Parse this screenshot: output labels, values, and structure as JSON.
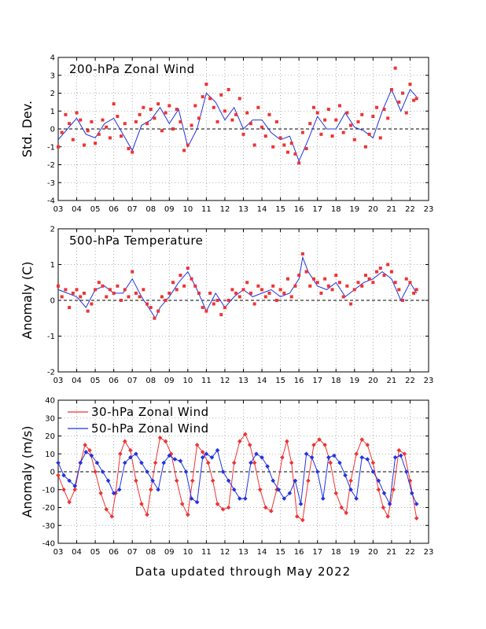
{
  "footer": "Data updated through May 2022",
  "colors": {
    "obs": "#ee3333",
    "smooth": "#2233dd",
    "t30": "#ee3333",
    "t50": "#2233dd",
    "grid": "#999999"
  },
  "chart_data": [
    {
      "type": "scatter",
      "title": "200-hPa Zonal Wind",
      "ylabel": "Std. Dev.",
      "xlabel": "",
      "xticks": [
        "03",
        "04",
        "05",
        "06",
        "07",
        "08",
        "09",
        "10",
        "11",
        "12",
        "13",
        "14",
        "15",
        "16",
        "17",
        "18",
        "19",
        "20",
        "21",
        "22",
        "23"
      ],
      "xlim": [
        2003,
        2023
      ],
      "ylim": [
        -4,
        4
      ],
      "yticks": [
        -4,
        -3,
        -2,
        -1,
        0,
        1,
        2,
        3,
        4
      ],
      "grid": true,
      "series": [
        {
          "role": "smoothed",
          "style": "line",
          "x": [
            2003.0,
            2003.5,
            2004.0,
            2004.5,
            2005.0,
            2005.5,
            2006.0,
            2006.5,
            2007.0,
            2007.5,
            2008.0,
            2008.5,
            2009.0,
            2009.5,
            2010.0,
            2010.5,
            2011.0,
            2011.5,
            2012.0,
            2012.5,
            2013.0,
            2013.5,
            2014.0,
            2014.5,
            2015.0,
            2015.5,
            2016.0,
            2016.5,
            2017.0,
            2017.5,
            2018.0,
            2018.5,
            2019.0,
            2019.5,
            2020.0,
            2020.5,
            2021.0,
            2021.5,
            2022.0,
            2022.35
          ],
          "y": [
            -0.6,
            0.0,
            0.6,
            -0.3,
            -0.5,
            0.3,
            0.6,
            -0.3,
            -1.2,
            0.2,
            0.5,
            1.2,
            0.3,
            1.1,
            -1.0,
            0.0,
            2.0,
            1.5,
            0.5,
            1.2,
            0.0,
            0.5,
            0.5,
            -0.2,
            -0.6,
            -0.4,
            -1.8,
            -0.6,
            0.7,
            0.0,
            0.0,
            0.9,
            0.1,
            -0.1,
            -0.5,
            1.0,
            2.2,
            1.0,
            2.2,
            1.8
          ]
        },
        {
          "role": "observed",
          "style": "markers",
          "x": [
            2003.0,
            2003.2,
            2003.4,
            2003.6,
            2003.8,
            2004.0,
            2004.2,
            2004.4,
            2004.6,
            2004.8,
            2005.0,
            2005.2,
            2005.4,
            2005.6,
            2005.8,
            2006.0,
            2006.2,
            2006.4,
            2006.6,
            2006.8,
            2007.0,
            2007.2,
            2007.4,
            2007.6,
            2007.8,
            2008.0,
            2008.2,
            2008.4,
            2008.6,
            2008.8,
            2009.0,
            2009.2,
            2009.4,
            2009.6,
            2009.8,
            2010.0,
            2010.2,
            2010.4,
            2010.6,
            2010.8,
            2011.0,
            2011.2,
            2011.4,
            2011.6,
            2011.8,
            2012.0,
            2012.2,
            2012.4,
            2012.6,
            2012.8,
            2013.0,
            2013.2,
            2013.4,
            2013.6,
            2013.8,
            2014.0,
            2014.2,
            2014.4,
            2014.6,
            2014.8,
            2015.0,
            2015.2,
            2015.4,
            2015.6,
            2015.8,
            2016.0,
            2016.2,
            2016.4,
            2016.6,
            2016.8,
            2017.0,
            2017.2,
            2017.4,
            2017.6,
            2017.8,
            2018.0,
            2018.2,
            2018.4,
            2018.6,
            2018.8,
            2019.0,
            2019.2,
            2019.4,
            2019.6,
            2019.8,
            2020.0,
            2020.2,
            2020.4,
            2020.6,
            2020.8,
            2021.0,
            2021.2,
            2021.4,
            2021.6,
            2021.8,
            2022.0,
            2022.2,
            2022.35
          ],
          "y": [
            -1.0,
            -0.2,
            0.8,
            0.3,
            -0.6,
            0.9,
            0.5,
            -0.9,
            -0.1,
            0.4,
            -0.8,
            -0.3,
            0.5,
            0.1,
            -0.5,
            1.4,
            0.7,
            -0.4,
            0.3,
            -1.1,
            -1.3,
            0.4,
            0.8,
            1.2,
            0.3,
            1.1,
            0.6,
            1.4,
            -0.1,
            0.9,
            1.3,
            0.0,
            1.1,
            0.4,
            -1.2,
            -0.9,
            0.2,
            1.3,
            0.6,
            1.8,
            2.5,
            1.7,
            1.2,
            0.4,
            1.9,
            1.0,
            2.2,
            0.5,
            0.8,
            1.7,
            -0.3,
            0.9,
            0.3,
            -0.9,
            1.2,
            0.1,
            -0.4,
            0.8,
            -1.0,
            0.4,
            -0.5,
            -0.9,
            -1.3,
            -0.8,
            -1.4,
            -1.9,
            -0.2,
            -1.1,
            0.3,
            1.2,
            0.9,
            -0.3,
            0.5,
            1.1,
            -0.4,
            0.5,
            1.3,
            -0.2,
            0.9,
            0.2,
            -0.6,
            0.4,
            0.8,
            -1.0,
            -0.3,
            0.7,
            1.2,
            -0.5,
            1.1,
            0.6,
            2.2,
            3.4,
            1.5,
            2.0,
            0.9,
            2.5,
            1.6,
            1.7
          ]
        }
      ]
    },
    {
      "type": "scatter",
      "title": "500-hPa Temperature",
      "ylabel": "Anomaly (C)",
      "xlabel": "",
      "xticks": [
        "03",
        "04",
        "05",
        "06",
        "07",
        "08",
        "09",
        "10",
        "11",
        "12",
        "13",
        "14",
        "15",
        "16",
        "17",
        "18",
        "19",
        "20",
        "21",
        "22",
        "23"
      ],
      "xlim": [
        2003,
        2023
      ],
      "ylim": [
        -2,
        2
      ],
      "yticks": [
        -2,
        -1,
        0,
        1,
        2
      ],
      "grid": true,
      "series": [
        {
          "role": "smoothed",
          "style": "line",
          "x": [
            2003.0,
            2003.5,
            2004.0,
            2004.5,
            2005.0,
            2005.5,
            2006.0,
            2006.5,
            2007.0,
            2007.5,
            2008.0,
            2008.25,
            2008.5,
            2009.0,
            2009.5,
            2010.0,
            2010.5,
            2011.0,
            2011.5,
            2012.0,
            2012.5,
            2013.0,
            2013.5,
            2014.0,
            2014.5,
            2015.0,
            2015.5,
            2016.0,
            2016.2,
            2016.5,
            2017.0,
            2017.5,
            2018.0,
            2018.5,
            2019.0,
            2019.5,
            2020.0,
            2020.5,
            2021.0,
            2021.5,
            2022.0,
            2022.35
          ],
          "y": [
            0.3,
            0.2,
            0.1,
            -0.2,
            0.3,
            0.4,
            0.2,
            0.2,
            0.6,
            0.1,
            -0.3,
            -0.5,
            -0.2,
            0.1,
            0.5,
            0.8,
            0.3,
            -0.3,
            0.2,
            -0.2,
            0.1,
            0.3,
            0.1,
            0.2,
            0.3,
            0.1,
            0.2,
            0.6,
            1.2,
            0.8,
            0.4,
            0.3,
            0.5,
            0.1,
            0.3,
            0.5,
            0.6,
            0.8,
            0.6,
            0.0,
            0.5,
            0.2
          ]
        },
        {
          "role": "observed",
          "style": "markers",
          "x": [
            2003.0,
            2003.2,
            2003.4,
            2003.6,
            2003.8,
            2004.0,
            2004.2,
            2004.4,
            2004.6,
            2004.8,
            2005.0,
            2005.2,
            2005.4,
            2005.6,
            2005.8,
            2006.0,
            2006.2,
            2006.4,
            2006.6,
            2006.8,
            2007.0,
            2007.2,
            2007.4,
            2007.6,
            2007.8,
            2008.0,
            2008.2,
            2008.4,
            2008.6,
            2008.8,
            2009.0,
            2009.2,
            2009.4,
            2009.6,
            2009.8,
            2010.0,
            2010.2,
            2010.4,
            2010.6,
            2010.8,
            2011.0,
            2011.2,
            2011.4,
            2011.6,
            2011.8,
            2012.0,
            2012.2,
            2012.4,
            2012.6,
            2012.8,
            2013.0,
            2013.2,
            2013.4,
            2013.6,
            2013.8,
            2014.0,
            2014.2,
            2014.4,
            2014.6,
            2014.8,
            2015.0,
            2015.2,
            2015.4,
            2015.6,
            2015.8,
            2016.0,
            2016.2,
            2016.4,
            2016.6,
            2016.8,
            2017.0,
            2017.2,
            2017.4,
            2017.6,
            2017.8,
            2018.0,
            2018.2,
            2018.4,
            2018.6,
            2018.8,
            2019.0,
            2019.2,
            2019.4,
            2019.6,
            2019.8,
            2020.0,
            2020.2,
            2020.4,
            2020.6,
            2020.8,
            2021.0,
            2021.2,
            2021.4,
            2021.6,
            2021.8,
            2022.0,
            2022.2,
            2022.35
          ],
          "y": [
            0.4,
            0.1,
            0.3,
            -0.2,
            0.2,
            0.3,
            0.1,
            0.2,
            -0.3,
            -0.1,
            0.3,
            0.5,
            0.4,
            0.1,
            0.3,
            0.2,
            0.4,
            0.0,
            0.3,
            0.1,
            0.8,
            0.2,
            0.1,
            0.3,
            -0.1,
            -0.2,
            -0.5,
            -0.3,
            0.1,
            0.0,
            0.2,
            0.5,
            0.3,
            0.7,
            0.4,
            0.9,
            0.6,
            0.4,
            0.2,
            -0.2,
            -0.3,
            0.2,
            -0.1,
            0.0,
            -0.4,
            -0.2,
            0.0,
            0.3,
            0.2,
            0.1,
            0.3,
            0.5,
            0.2,
            -0.1,
            0.4,
            0.3,
            0.1,
            0.2,
            0.4,
            0.0,
            0.3,
            0.2,
            0.6,
            0.1,
            0.4,
            0.7,
            1.3,
            0.8,
            0.4,
            0.6,
            0.5,
            0.2,
            0.6,
            0.4,
            0.3,
            0.7,
            0.5,
            0.1,
            0.4,
            -0.1,
            0.3,
            0.5,
            0.4,
            0.7,
            0.6,
            0.5,
            0.8,
            0.9,
            0.7,
            1.0,
            0.8,
            0.5,
            0.3,
            0.0,
            0.6,
            0.5,
            0.2,
            0.3
          ]
        }
      ]
    },
    {
      "type": "line",
      "title": "",
      "ylabel": "Anomaly (m/s)",
      "xlabel": "",
      "xticks": [
        "03",
        "04",
        "05",
        "06",
        "07",
        "08",
        "09",
        "10",
        "11",
        "12",
        "13",
        "14",
        "15",
        "16",
        "17",
        "18",
        "19",
        "20",
        "21",
        "22",
        "23"
      ],
      "xlim": [
        2003,
        2023
      ],
      "ylim": [
        -40,
        40
      ],
      "yticks": [
        -40,
        -30,
        -20,
        -10,
        0,
        10,
        20,
        30,
        40
      ],
      "grid": true,
      "legend": "top-left",
      "series": [
        {
          "name": "30-hPa Zonal Wind",
          "x": [
            2003.0,
            2003.3,
            2003.6,
            2003.9,
            2004.2,
            2004.45,
            2004.7,
            2005.0,
            2005.3,
            2005.6,
            2005.9,
            2006.1,
            2006.35,
            2006.6,
            2006.9,
            2007.2,
            2007.5,
            2007.8,
            2008.0,
            2008.25,
            2008.5,
            2008.8,
            2009.1,
            2009.4,
            2009.7,
            2010.0,
            2010.25,
            2010.5,
            2010.8,
            2011.1,
            2011.35,
            2011.6,
            2011.9,
            2012.2,
            2012.5,
            2012.8,
            2013.1,
            2013.35,
            2013.6,
            2013.9,
            2014.2,
            2014.5,
            2014.8,
            2015.1,
            2015.35,
            2015.6,
            2015.9,
            2016.2,
            2016.5,
            2016.8,
            2017.1,
            2017.4,
            2017.7,
            2018.0,
            2018.3,
            2018.55,
            2018.8,
            2019.1,
            2019.4,
            2019.7,
            2020.0,
            2020.3,
            2020.55,
            2020.8,
            2021.1,
            2021.4,
            2021.7,
            2022.0,
            2022.35
          ],
          "y": [
            -2,
            -10,
            -17,
            -10,
            5,
            15,
            12,
            0,
            -12,
            -21,
            -25,
            -12,
            10,
            17,
            12,
            -5,
            -18,
            -24,
            -10,
            5,
            19,
            17,
            10,
            -5,
            -18,
            -24,
            -5,
            15,
            11,
            5,
            -5,
            -18,
            -21,
            -20,
            5,
            17,
            21,
            15,
            5,
            -10,
            -20,
            -22,
            -10,
            8,
            17,
            5,
            -25,
            -27,
            -5,
            15,
            18,
            15,
            5,
            -12,
            -20,
            -23,
            -5,
            10,
            18,
            15,
            5,
            -10,
            -20,
            -25,
            -10,
            12,
            10,
            -5,
            -26
          ]
        },
        {
          "name": "50-hPa Zonal Wind",
          "x": [
            2003.0,
            2003.3,
            2003.6,
            2003.9,
            2004.2,
            2004.5,
            2004.8,
            2005.1,
            2005.4,
            2005.7,
            2006.0,
            2006.3,
            2006.6,
            2006.9,
            2007.2,
            2007.5,
            2007.8,
            2008.1,
            2008.4,
            2008.7,
            2009.0,
            2009.3,
            2009.6,
            2009.9,
            2010.2,
            2010.5,
            2010.8,
            2011.0,
            2011.3,
            2011.6,
            2011.9,
            2012.2,
            2012.5,
            2012.8,
            2013.1,
            2013.4,
            2013.7,
            2014.0,
            2014.3,
            2014.6,
            2014.9,
            2015.2,
            2015.5,
            2015.8,
            2016.1,
            2016.4,
            2016.7,
            2017.0,
            2017.3,
            2017.6,
            2017.9,
            2018.2,
            2018.5,
            2018.8,
            2019.1,
            2019.4,
            2019.7,
            2020.0,
            2020.3,
            2020.6,
            2020.9,
            2021.2,
            2021.5,
            2021.8,
            2022.1,
            2022.35
          ],
          "y": [
            5,
            -2,
            -5,
            -8,
            5,
            11,
            9,
            5,
            0,
            -5,
            -12,
            -10,
            5,
            8,
            10,
            5,
            0,
            -5,
            -10,
            5,
            9,
            7,
            6,
            0,
            -15,
            -17,
            8,
            10,
            8,
            12,
            0,
            -5,
            -10,
            -15,
            -15,
            5,
            10,
            8,
            3,
            -5,
            -10,
            -15,
            -12,
            -5,
            -18,
            10,
            8,
            0,
            -15,
            8,
            9,
            5,
            -2,
            -10,
            -15,
            8,
            7,
            0,
            -5,
            -12,
            -18,
            8,
            9,
            0,
            -12,
            -18
          ]
        }
      ]
    }
  ]
}
